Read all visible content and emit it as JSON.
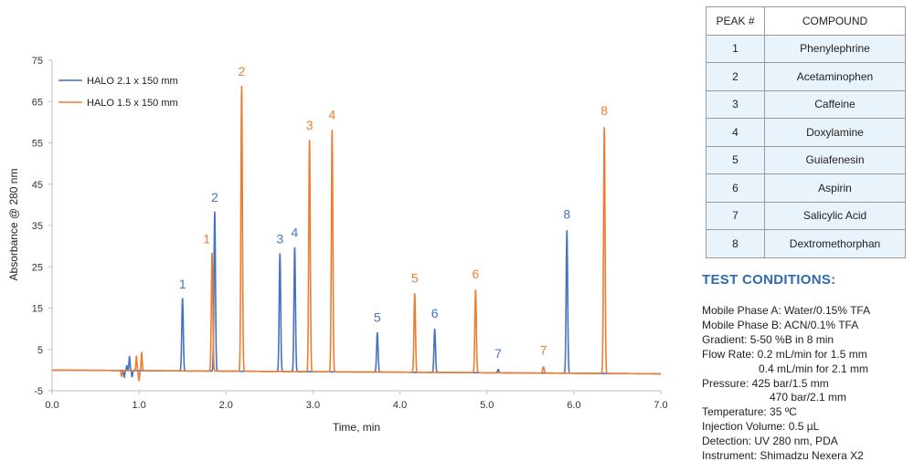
{
  "chart_data": {
    "type": "line",
    "title": "",
    "xlabel": "Time, min",
    "ylabel": "Absorbance @ 280 nm",
    "xlim": [
      0,
      7
    ],
    "ylim": [
      -5,
      75
    ],
    "x_ticks": [
      "0.0",
      "1.0",
      "2.0",
      "3.0",
      "4.0",
      "5.0",
      "6.0",
      "7.0"
    ],
    "y_ticks": [
      "-5",
      "5",
      "15",
      "25",
      "35",
      "45",
      "55",
      "65",
      "75"
    ],
    "grid": false,
    "legend_position": "top-left",
    "series": [
      {
        "name": "HALO 2.1 x 150 mm",
        "color": "#4472c4",
        "baseline": [
          [
            0,
            0
          ],
          [
            7,
            -0.9
          ]
        ],
        "peaks": [
          {
            "label": "1",
            "time": 1.5,
            "height": 17.5
          },
          {
            "label": "2",
            "time": 1.87,
            "height": 38.5
          },
          {
            "label": "3",
            "time": 2.62,
            "height": 28.5
          },
          {
            "label": "4",
            "time": 2.79,
            "height": 30.0
          },
          {
            "label": "5",
            "time": 3.74,
            "height": 9.5
          },
          {
            "label": "6",
            "time": 4.4,
            "height": 10.5
          },
          {
            "label": "7",
            "time": 5.13,
            "height": 0.8
          },
          {
            "label": "8",
            "time": 5.92,
            "height": 34.5
          }
        ]
      },
      {
        "name": "HALO 1.5 x 150 mm",
        "color": "#ed7d31",
        "baseline": [
          [
            0,
            0
          ],
          [
            7,
            -0.9
          ]
        ],
        "peaks": [
          {
            "label": "1",
            "time": 1.84,
            "height": 28.5
          },
          {
            "label": "2",
            "time": 2.18,
            "height": 69.0
          },
          {
            "label": "3",
            "time": 2.96,
            "height": 56.0
          },
          {
            "label": "4",
            "time": 3.22,
            "height": 58.5
          },
          {
            "label": "5",
            "time": 4.17,
            "height": 19.0
          },
          {
            "label": "6",
            "time": 4.87,
            "height": 20.0
          },
          {
            "label": "7",
            "time": 5.65,
            "height": 1.5
          },
          {
            "label": "8",
            "time": 6.35,
            "height": 59.5
          }
        ]
      }
    ]
  },
  "table": {
    "headers": [
      "PEAK #",
      "COMPOUND"
    ],
    "rows": [
      [
        "1",
        "Phenylephrine"
      ],
      [
        "2",
        "Acetaminophen"
      ],
      [
        "3",
        "Caffeine"
      ],
      [
        "4",
        "Doxylamine"
      ],
      [
        "5",
        "Guiafenesin"
      ],
      [
        "6",
        "Aspirin"
      ],
      [
        "7",
        "Salicylic Acid"
      ],
      [
        "8",
        "Dextromethorphan"
      ]
    ]
  },
  "conditions": {
    "title": "TEST CONDITIONS:",
    "lines": {
      "mobile_a": "Mobile Phase A: Water/0.15% TFA",
      "mobile_b": "Mobile Phase B: ACN/0.1% TFA",
      "gradient": "Gradient: 5-50 %B in 8 min",
      "flow_1": "Flow Rate: 0.2 mL/min for 1.5 mm",
      "flow_2": "0.4 mL/min for 2.1 mm",
      "pressure_1": "Pressure: 425 bar/1.5 mm",
      "pressure_2": "470 bar/2.1 mm",
      "temperature": "Temperature: 35 ºC",
      "injection": "Injection Volume: 0.5 µL",
      "detection": "Detection: UV 280 nm, PDA",
      "instrument": "Instrument: Shimadzu Nexera X2"
    }
  }
}
